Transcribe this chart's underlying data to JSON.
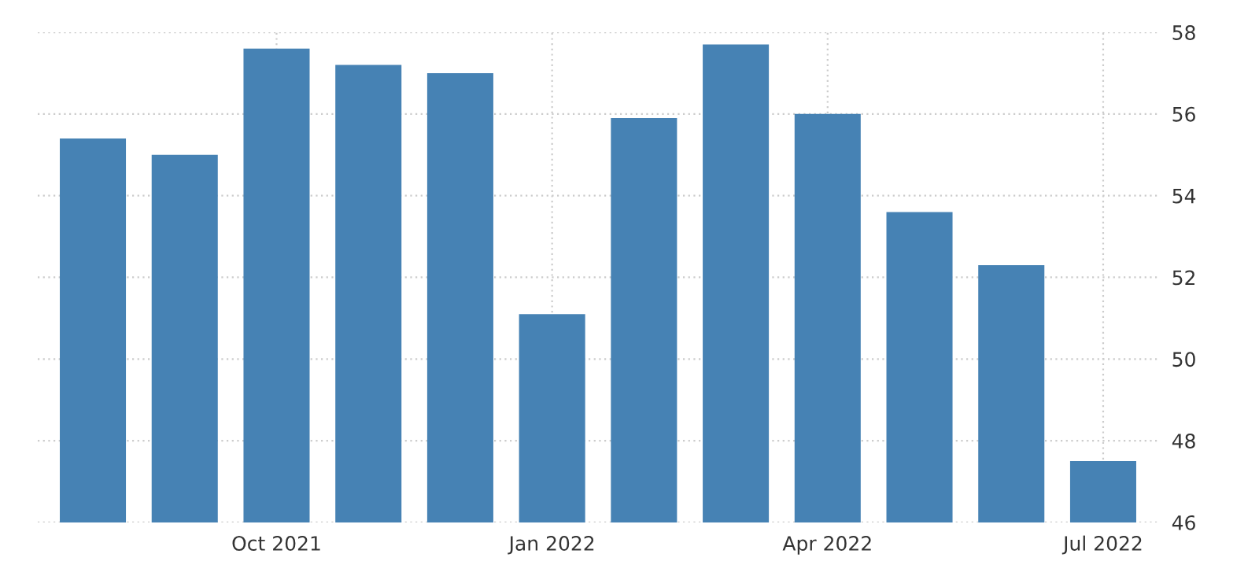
{
  "chart_data": {
    "type": "bar",
    "categories": [
      null,
      null,
      "Oct 2021",
      null,
      null,
      "Jan 2022",
      null,
      null,
      "Apr 2022",
      null,
      null,
      "Jul 2022"
    ],
    "values": [
      55.4,
      55.0,
      57.6,
      57.2,
      57.0,
      51.1,
      55.9,
      57.7,
      56.0,
      53.6,
      52.3,
      47.5
    ],
    "color": "#4682b4",
    "ylim": [
      46,
      58
    ],
    "yticks": [
      46,
      48,
      50,
      52,
      54,
      56,
      58
    ],
    "grid": true
  }
}
